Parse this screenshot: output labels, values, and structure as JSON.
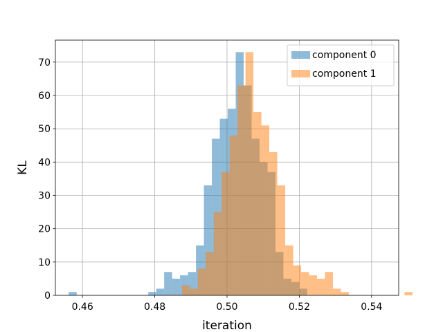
{
  "chart_data": {
    "type": "histogram",
    "xlabel": "iteration",
    "ylabel": "KL",
    "xlim": [
      0.4525,
      0.5475
    ],
    "ylim": [
      0,
      76.6
    ],
    "xticks": [
      0.46,
      0.48,
      0.5,
      0.52,
      0.54
    ],
    "xtick_labels": [
      "0.46",
      "0.48",
      "0.50",
      "0.52",
      "0.54"
    ],
    "yticks": [
      0,
      10,
      20,
      30,
      40,
      50,
      60,
      70
    ],
    "ytick_labels": [
      "0",
      "10",
      "20",
      "30",
      "40",
      "50",
      "60",
      "70"
    ],
    "grid": true,
    "legend_position": "top-right",
    "bin_width": 0.0022,
    "series": [
      {
        "name": "component 0",
        "color": "#1f77b4",
        "alpha": 0.5,
        "bin_start": 0.4562,
        "counts": [
          1,
          0,
          0,
          0,
          0,
          0,
          0,
          0,
          0,
          0,
          1,
          2,
          7,
          5,
          6,
          7,
          15,
          33,
          47,
          53,
          56,
          73,
          63,
          47,
          40,
          37,
          13,
          5,
          4,
          2
        ]
      },
      {
        "name": "component 1",
        "color": "#ff7f0e",
        "alpha": 0.5,
        "bin_start": 0.4875,
        "counts": [
          3,
          2,
          8,
          13,
          25,
          37,
          48,
          63,
          73,
          55,
          51,
          43,
          33,
          15,
          9,
          7,
          6,
          5,
          7,
          2,
          1,
          0,
          0,
          0,
          0,
          0,
          0,
          0,
          1
        ]
      }
    ]
  }
}
